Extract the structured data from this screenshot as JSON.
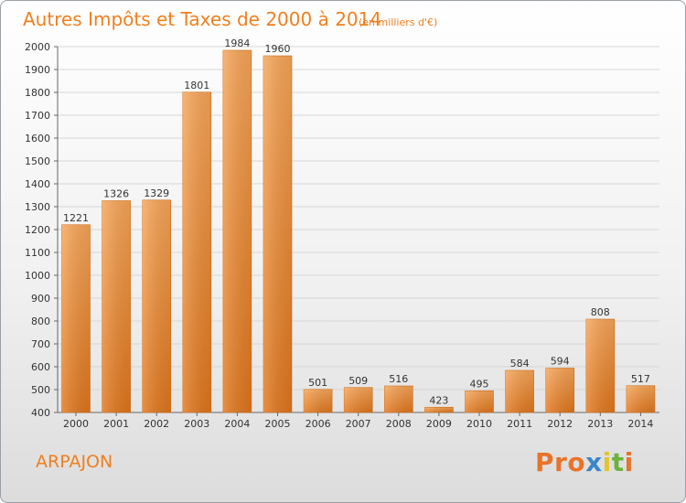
{
  "chart_data": {
    "type": "bar",
    "title": "Autres Impôts et Taxes de 2000 à 2014",
    "subtitle": "(en milliers d'€)",
    "categories": [
      "2000",
      "2001",
      "2002",
      "2003",
      "2004",
      "2005",
      "2006",
      "2007",
      "2008",
      "2009",
      "2010",
      "2011",
      "2012",
      "2013",
      "2014"
    ],
    "values": [
      1221,
      1326,
      1329,
      1801,
      1984,
      1960,
      501,
      509,
      516,
      423,
      495,
      584,
      594,
      808,
      517
    ],
    "ylim": [
      400,
      2000
    ],
    "yticks": [
      400,
      500,
      600,
      700,
      800,
      900,
      1000,
      1100,
      1200,
      1300,
      1400,
      1500,
      1600,
      1700,
      1800,
      1900,
      2000
    ],
    "grid": true,
    "bar_color": "#f08a2c",
    "xlabel": "",
    "ylabel": ""
  },
  "commune": "ARPAJON",
  "brand": "Proxiti",
  "brand_colors": [
    "#e8732a",
    "#e8732a",
    "#e8732a",
    "#3a86c8",
    "#e3c52b",
    "#6bb33c",
    "#e8732a"
  ],
  "accent": "#f07f1e"
}
